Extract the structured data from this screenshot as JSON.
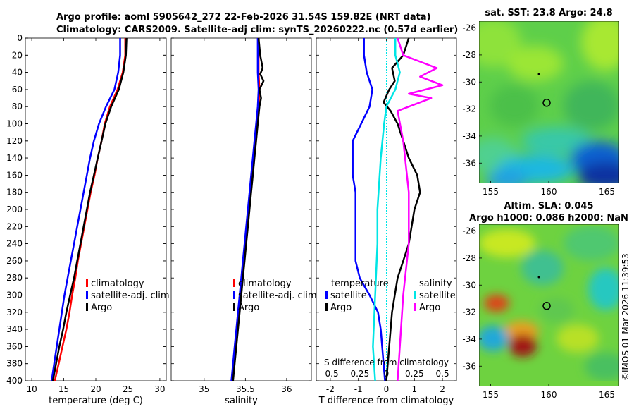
{
  "titles": {
    "line1": "Argo profile: aoml 5905642_272 22-Feb-2026 31.54S 159.82E (NRT data)",
    "line2": "Climatology: CARS2009. Satellite-adj clim: synTS_20260222.nc (0.57d earlier)",
    "sst_map": "sat. SST: 23.8 Argo: 24.8",
    "sla_map_line1": "Altim. SLA: 0.045",
    "sla_map_line2": "Argo h1000: 0.086 h2000: NaN",
    "watermark": "©IMOS 01-Mar-2026 11:39:53"
  },
  "colors": {
    "climatology": "#ff0000",
    "satellite": "#0000ff",
    "argo": "#000000",
    "salinity_satellite": "#00e5e5",
    "salinity_argo": "#ff00ff"
  },
  "chart_data": [
    {
      "type": "line",
      "name": "temperature-profile",
      "xlabel": "temperature (deg C)",
      "ylabel": "depth",
      "xlim": [
        9,
        31
      ],
      "ylim": [
        400,
        0
      ],
      "xticks": [
        10,
        15,
        20,
        25,
        30
      ],
      "yticks": [
        0,
        20,
        40,
        60,
        80,
        100,
        120,
        140,
        160,
        180,
        200,
        220,
        240,
        260,
        280,
        300,
        320,
        340,
        360,
        380,
        400
      ],
      "legend": [
        "climatology",
        "satellite-adj. clim",
        "Argo"
      ],
      "series": [
        {
          "name": "climatology",
          "color": "#ff0000",
          "points": [
            [
              24.6,
              0
            ],
            [
              24.6,
              20
            ],
            [
              24.2,
              40
            ],
            [
              23.4,
              60
            ],
            [
              22.2,
              80
            ],
            [
              21.4,
              100
            ],
            [
              20.9,
              120
            ],
            [
              20.3,
              140
            ],
            [
              19.8,
              160
            ],
            [
              19.2,
              180
            ],
            [
              18.7,
              200
            ],
            [
              18.2,
              220
            ],
            [
              17.7,
              240
            ],
            [
              17.2,
              260
            ],
            [
              16.8,
              280
            ],
            [
              16.3,
              300
            ],
            [
              15.9,
              320
            ],
            [
              15.4,
              340
            ],
            [
              14.8,
              360
            ],
            [
              14.2,
              380
            ],
            [
              13.6,
              400
            ]
          ]
        },
        {
          "name": "satellite-adj. clim",
          "color": "#0000ff",
          "points": [
            [
              23.8,
              0
            ],
            [
              23.8,
              20
            ],
            [
              23.5,
              40
            ],
            [
              22.9,
              60
            ],
            [
              21.6,
              80
            ],
            [
              20.5,
              100
            ],
            [
              19.7,
              120
            ],
            [
              19.1,
              140
            ],
            [
              18.6,
              160
            ],
            [
              18.1,
              180
            ],
            [
              17.6,
              200
            ],
            [
              17.1,
              220
            ],
            [
              16.6,
              240
            ],
            [
              16.1,
              260
            ],
            [
              15.6,
              280
            ],
            [
              15.1,
              300
            ],
            [
              14.7,
              320
            ],
            [
              14.3,
              340
            ],
            [
              13.9,
              360
            ],
            [
              13.5,
              380
            ],
            [
              13.1,
              400
            ]
          ]
        },
        {
          "name": "Argo",
          "color": "#000000",
          "points": [
            [
              24.8,
              0
            ],
            [
              24.7,
              20
            ],
            [
              24.3,
              40
            ],
            [
              23.6,
              60
            ],
            [
              22.4,
              80
            ],
            [
              21.5,
              100
            ],
            [
              20.9,
              120
            ],
            [
              20.3,
              140
            ],
            [
              19.7,
              160
            ],
            [
              19.1,
              180
            ],
            [
              18.6,
              200
            ],
            [
              18.1,
              220
            ],
            [
              17.6,
              240
            ],
            [
              17.1,
              260
            ],
            [
              16.6,
              280
            ],
            [
              16.0,
              300
            ],
            [
              15.4,
              320
            ],
            [
              14.9,
              340
            ],
            [
              14.3,
              360
            ],
            [
              13.8,
              380
            ],
            [
              13.3,
              400
            ]
          ]
        }
      ]
    },
    {
      "type": "line",
      "name": "salinity-profile",
      "xlabel": "salinity",
      "xlim": [
        34.6,
        36.3
      ],
      "ylim": [
        400,
        0
      ],
      "xticks": [
        35,
        35.5,
        36
      ],
      "xtick_labels": [
        "35",
        "35.5",
        "36"
      ],
      "legend": [
        "climatology",
        "satellite-adj. clim",
        "Argo"
      ],
      "series": [
        {
          "name": "climatology",
          "color": "#ff0000",
          "points": [
            [
              35.66,
              0
            ],
            [
              35.66,
              20
            ],
            [
              35.66,
              40
            ],
            [
              35.67,
              60
            ],
            [
              35.66,
              80
            ],
            [
              35.64,
              100
            ],
            [
              35.62,
              120
            ],
            [
              35.6,
              140
            ],
            [
              35.58,
              160
            ],
            [
              35.56,
              180
            ],
            [
              35.54,
              200
            ],
            [
              35.52,
              220
            ],
            [
              35.5,
              240
            ],
            [
              35.48,
              260
            ],
            [
              35.46,
              280
            ],
            [
              35.44,
              300
            ],
            [
              35.42,
              320
            ],
            [
              35.4,
              340
            ],
            [
              35.38,
              360
            ],
            [
              35.36,
              380
            ],
            [
              35.34,
              400
            ]
          ]
        },
        {
          "name": "satellite-adj. clim",
          "color": "#0000ff",
          "points": [
            [
              35.65,
              0
            ],
            [
              35.65,
              20
            ],
            [
              35.65,
              40
            ],
            [
              35.66,
              60
            ],
            [
              35.65,
              80
            ],
            [
              35.63,
              100
            ],
            [
              35.61,
              120
            ],
            [
              35.59,
              140
            ],
            [
              35.57,
              160
            ],
            [
              35.55,
              180
            ],
            [
              35.53,
              200
            ],
            [
              35.51,
              220
            ],
            [
              35.49,
              240
            ],
            [
              35.47,
              260
            ],
            [
              35.45,
              280
            ],
            [
              35.43,
              300
            ],
            [
              35.41,
              320
            ],
            [
              35.39,
              340
            ],
            [
              35.37,
              360
            ],
            [
              35.35,
              380
            ],
            [
              35.33,
              400
            ]
          ]
        },
        {
          "name": "Argo",
          "color": "#000000",
          "points": [
            [
              35.66,
              0
            ],
            [
              35.68,
              20
            ],
            [
              35.71,
              35
            ],
            [
              35.68,
              42
            ],
            [
              35.72,
              50
            ],
            [
              35.67,
              60
            ],
            [
              35.69,
              70
            ],
            [
              35.67,
              80
            ],
            [
              35.65,
              100
            ],
            [
              35.63,
              120
            ],
            [
              35.61,
              140
            ],
            [
              35.59,
              160
            ],
            [
              35.57,
              180
            ],
            [
              35.55,
              200
            ],
            [
              35.53,
              220
            ],
            [
              35.51,
              240
            ],
            [
              35.49,
              260
            ],
            [
              35.47,
              280
            ],
            [
              35.45,
              300
            ],
            [
              35.43,
              320
            ],
            [
              35.41,
              340
            ],
            [
              35.39,
              360
            ],
            [
              35.37,
              380
            ],
            [
              35.35,
              400
            ]
          ]
        }
      ]
    },
    {
      "type": "line",
      "name": "difference-profile",
      "xlabel": "T difference from climatology",
      "x2label": "S difference from climatology",
      "xlim": [
        -2.5,
        2.5
      ],
      "ylim": [
        400,
        0
      ],
      "xticks": [
        -2,
        -1,
        0,
        1,
        2
      ],
      "xtick_labels": [
        "-2",
        "-1",
        "0",
        "1",
        "2"
      ],
      "x2ticks": [
        -0.5,
        -0.25,
        0,
        0.25,
        0.5
      ],
      "x2tick_labels": [
        "-0.5",
        "-0.25",
        "0",
        "0.25",
        "0.5"
      ],
      "x2_scale": 4,
      "legend_temperature": {
        "title": "temperature",
        "items": [
          "satellite",
          "Argo"
        ]
      },
      "legend_salinity": {
        "title": "salinity",
        "items": [
          "satellite",
          "Argo"
        ]
      },
      "series": [
        {
          "name": "T satellite",
          "color": "#0000ff",
          "points": [
            [
              -0.8,
              0
            ],
            [
              -0.8,
              20
            ],
            [
              -0.7,
              40
            ],
            [
              -0.5,
              60
            ],
            [
              -0.6,
              80
            ],
            [
              -0.9,
              100
            ],
            [
              -1.2,
              120
            ],
            [
              -1.2,
              140
            ],
            [
              -1.2,
              160
            ],
            [
              -1.1,
              180
            ],
            [
              -1.1,
              200
            ],
            [
              -1.1,
              220
            ],
            [
              -1.1,
              240
            ],
            [
              -1.1,
              260
            ],
            [
              -0.95,
              280
            ],
            [
              -0.6,
              300
            ],
            [
              -0.3,
              320
            ],
            [
              -0.2,
              340
            ],
            [
              -0.15,
              360
            ],
            [
              -0.1,
              380
            ],
            [
              -0.05,
              400
            ]
          ]
        },
        {
          "name": "T Argo",
          "color": "#000000",
          "points": [
            [
              0.8,
              0
            ],
            [
              0.6,
              20
            ],
            [
              0.2,
              35
            ],
            [
              0.3,
              50
            ],
            [
              0.1,
              60
            ],
            [
              -0.1,
              75
            ],
            [
              0.15,
              85
            ],
            [
              0.4,
              100
            ],
            [
              0.6,
              120
            ],
            [
              0.8,
              140
            ],
            [
              1.1,
              160
            ],
            [
              1.2,
              180
            ],
            [
              1.0,
              200
            ],
            [
              0.9,
              220
            ],
            [
              0.8,
              240
            ],
            [
              0.6,
              260
            ],
            [
              0.4,
              280
            ],
            [
              0.3,
              300
            ],
            [
              0.2,
              320
            ],
            [
              0.15,
              340
            ],
            [
              0.1,
              360
            ],
            [
              0.05,
              380
            ],
            [
              0.0,
              400
            ]
          ]
        },
        {
          "name": "S satellite",
          "color": "#00e5e5",
          "points": [
            [
              0.08,
              0
            ],
            [
              0.08,
              20
            ],
            [
              0.12,
              40
            ],
            [
              0.08,
              60
            ],
            [
              0.0,
              80
            ],
            [
              -0.02,
              100
            ],
            [
              -0.05,
              140
            ],
            [
              -0.08,
              200
            ],
            [
              -0.08,
              240
            ],
            [
              -0.1,
              300
            ],
            [
              -0.12,
              360
            ],
            [
              -0.1,
              400
            ]
          ]
        },
        {
          "name": "S Argo",
          "color": "#ff00ff",
          "points": [
            [
              0.1,
              0
            ],
            [
              0.15,
              20
            ],
            [
              0.45,
              35
            ],
            [
              0.3,
              45
            ],
            [
              0.5,
              55
            ],
            [
              0.2,
              65
            ],
            [
              0.4,
              70
            ],
            [
              0.1,
              85
            ],
            [
              0.15,
              120
            ],
            [
              0.2,
              180
            ],
            [
              0.2,
              240
            ],
            [
              0.15,
              300
            ],
            [
              0.12,
              360
            ],
            [
              0.1,
              400
            ]
          ]
        }
      ]
    },
    {
      "type": "heatmap",
      "name": "sst-map",
      "title": "sat. SST: 23.8 Argo: 24.8",
      "xlim": [
        154,
        166
      ],
      "ylim": [
        -37.5,
        -25.5
      ],
      "xticks": [
        155,
        160,
        165
      ],
      "yticks": [
        -26,
        -28,
        -30,
        -32,
        -34,
        -36
      ],
      "marker": {
        "lon": 159.82,
        "lat": -31.54
      }
    },
    {
      "type": "heatmap",
      "name": "sla-map",
      "title": "Altim. SLA: 0.045",
      "xlim": [
        154,
        166
      ],
      "ylim": [
        -37.5,
        -25.5
      ],
      "xticks": [
        155,
        160,
        165
      ],
      "yticks": [
        -26,
        -28,
        -30,
        -32,
        -34,
        -36
      ],
      "marker": {
        "lon": 159.82,
        "lat": -31.54
      }
    }
  ]
}
